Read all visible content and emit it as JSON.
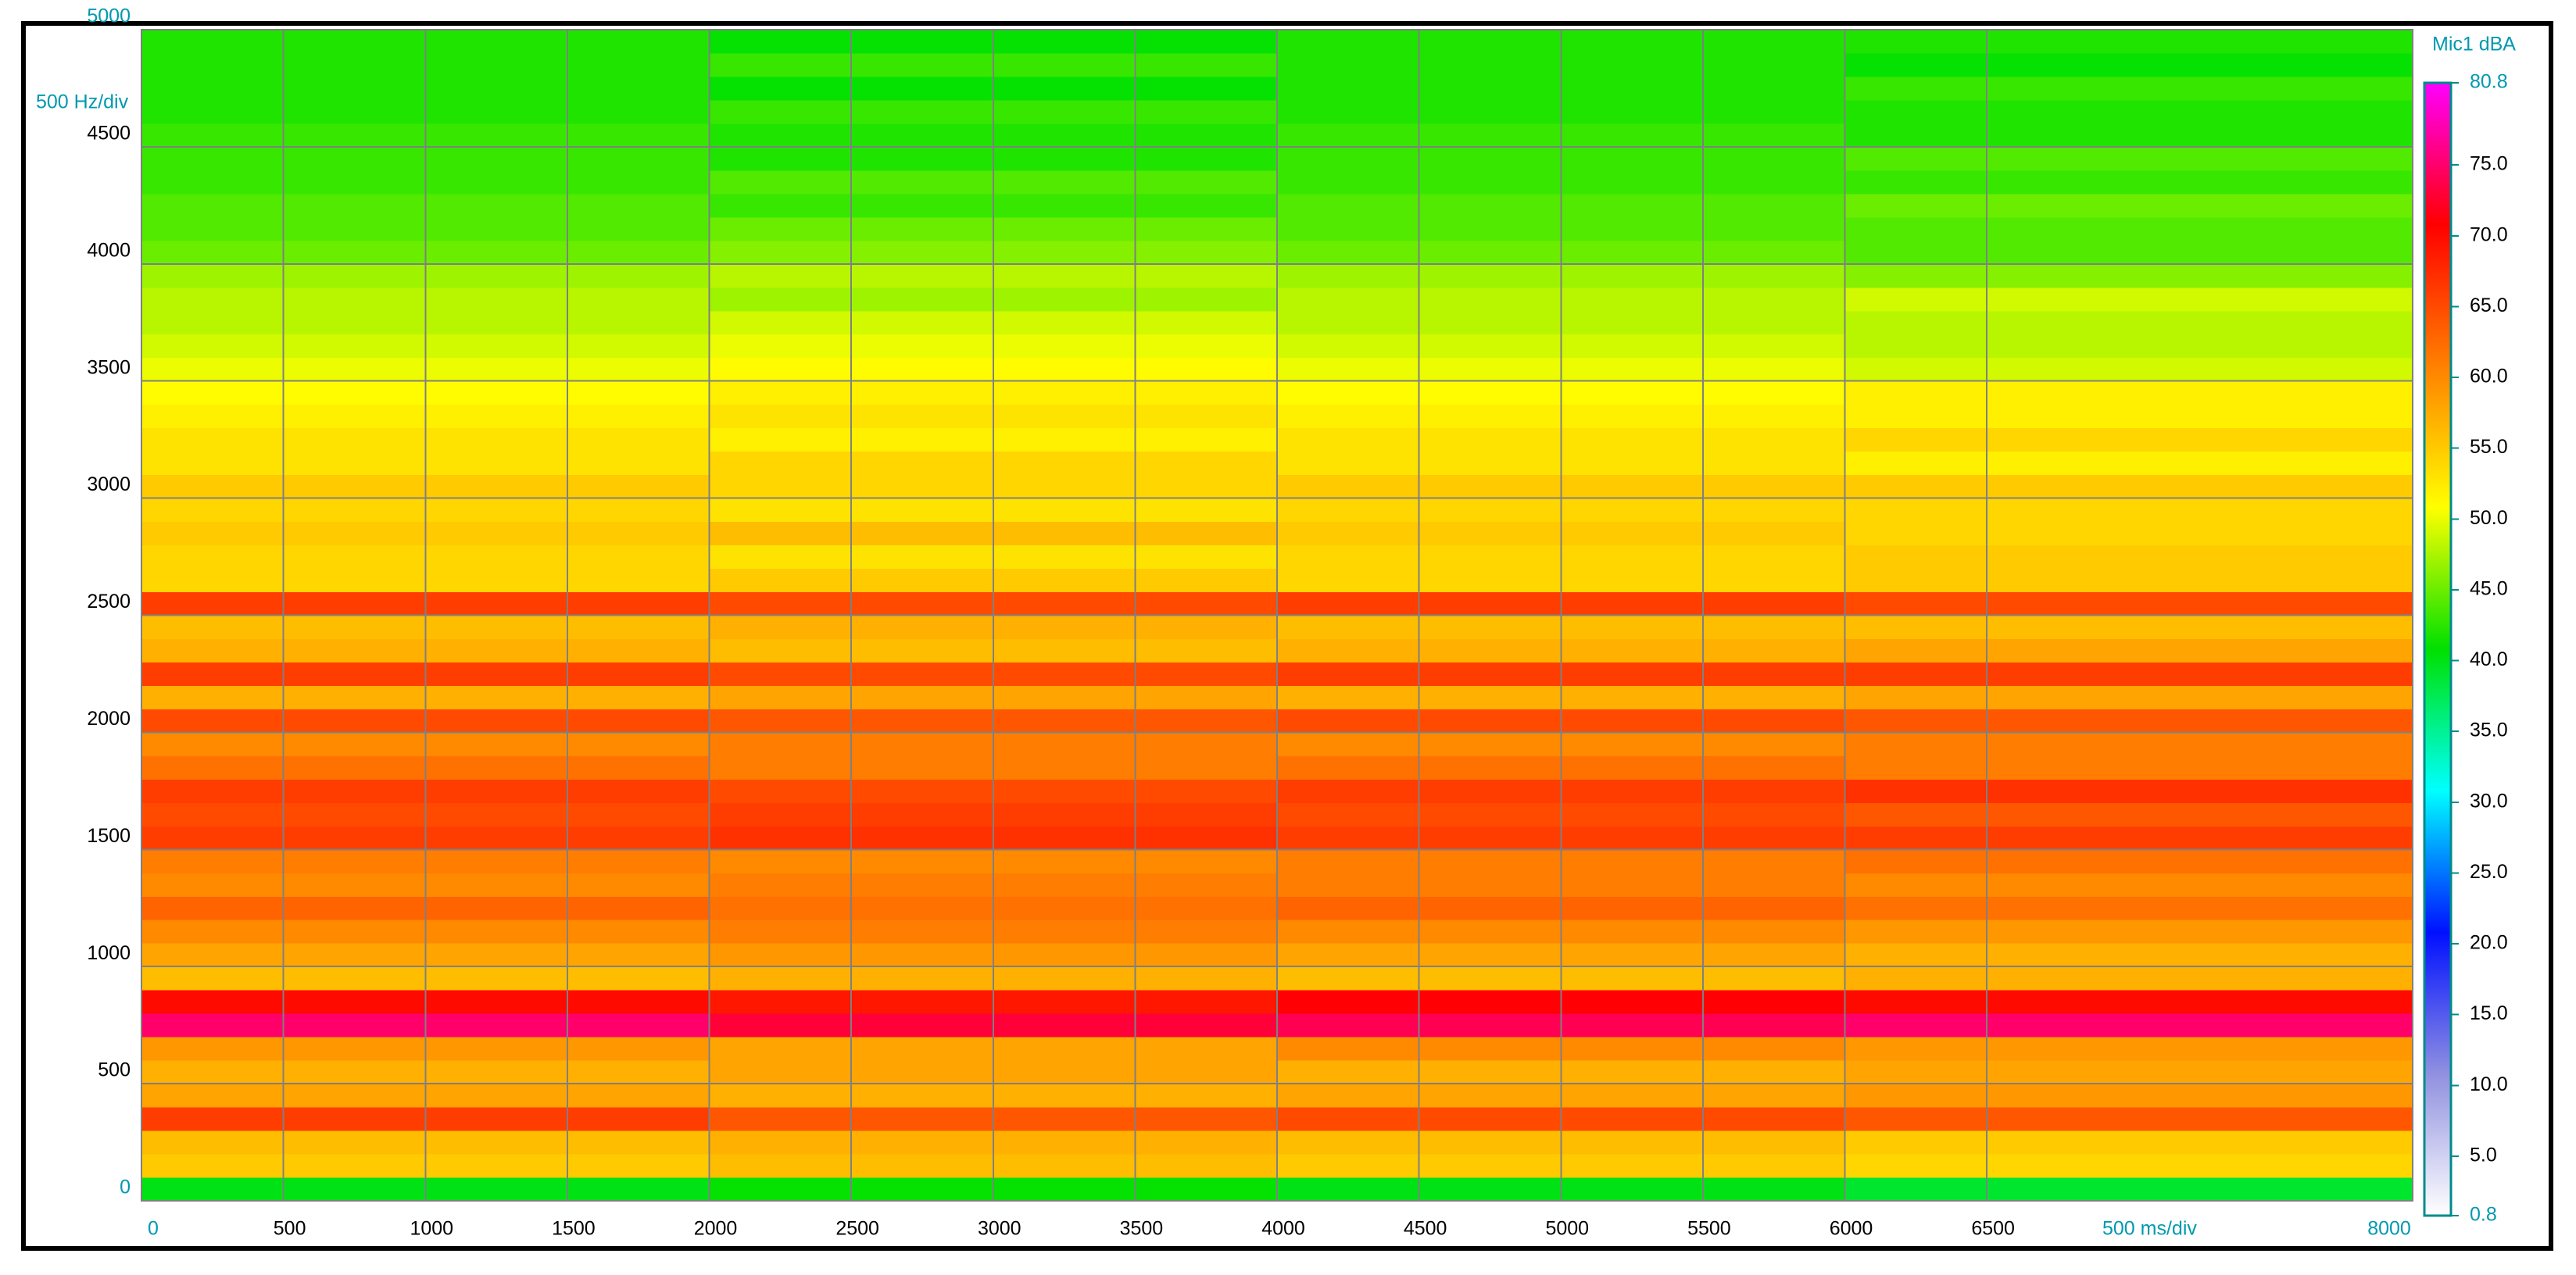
{
  "chart_data": {
    "type": "heatmap",
    "x_label": "500 ms/div",
    "y_label": "500 Hz/div",
    "colorbar_label": "Mic1 dBA",
    "x": [
      0,
      2000,
      4000,
      6000,
      8000
    ],
    "y": [
      0,
      100,
      200,
      300,
      400,
      500,
      600,
      700,
      800,
      900,
      1000,
      1100,
      1200,
      1300,
      1400,
      1500,
      1600,
      1700,
      1800,
      1900,
      2000,
      2100,
      2200,
      2300,
      2400,
      2500,
      2600,
      2700,
      2800,
      2900,
      3000,
      3100,
      3200,
      3300,
      3400,
      3500,
      3600,
      3700,
      3800,
      3900,
      4000,
      4100,
      4200,
      4300,
      4400,
      4500,
      4600,
      4700,
      4800,
      4900,
      5000
    ],
    "z": [
      [
        40,
        41,
        40,
        39
      ],
      [
        55,
        56,
        55,
        54
      ],
      [
        56,
        57,
        56,
        55
      ],
      [
        66,
        64,
        65,
        64
      ],
      [
        58,
        57,
        58,
        59
      ],
      [
        57,
        58,
        57,
        58
      ],
      [
        59,
        58,
        60,
        59
      ],
      [
        75,
        73,
        74,
        75
      ],
      [
        70,
        69,
        71,
        70
      ],
      [
        56,
        57,
        56,
        57
      ],
      [
        58,
        59,
        58,
        57
      ],
      [
        60,
        61,
        60,
        59
      ],
      [
        63,
        62,
        63,
        62
      ],
      [
        60,
        61,
        61,
        60
      ],
      [
        61,
        60,
        61,
        62
      ],
      [
        66,
        67,
        66,
        66
      ],
      [
        65,
        66,
        65,
        64
      ],
      [
        66,
        65,
        66,
        67
      ],
      [
        62,
        61,
        62,
        61
      ],
      [
        60,
        61,
        60,
        61
      ],
      [
        65,
        64,
        65,
        64
      ],
      [
        57,
        58,
        57,
        58
      ],
      [
        66,
        65,
        66,
        66
      ],
      [
        57,
        56,
        57,
        58
      ],
      [
        56,
        57,
        56,
        56
      ],
      [
        66,
        65,
        66,
        65
      ],
      [
        54,
        55,
        54,
        55
      ],
      [
        54,
        53,
        54,
        55
      ],
      [
        55,
        56,
        55,
        54
      ],
      [
        54,
        53,
        54,
        54
      ],
      [
        55,
        54,
        55,
        55
      ],
      [
        53,
        54,
        53,
        52
      ],
      [
        53,
        52,
        53,
        54
      ],
      [
        52,
        53,
        52,
        52
      ],
      [
        51,
        52,
        51,
        52
      ],
      [
        50,
        51,
        50,
        49
      ],
      [
        49,
        50,
        49,
        48
      ],
      [
        48,
        49,
        48,
        48
      ],
      [
        48,
        47,
        48,
        49
      ],
      [
        47,
        48,
        47,
        46
      ],
      [
        45,
        46,
        45,
        44
      ],
      [
        44,
        45,
        44,
        44
      ],
      [
        44,
        43,
        44,
        45
      ],
      [
        43,
        44,
        43,
        43
      ],
      [
        43,
        42,
        43,
        44
      ],
      [
        43,
        42,
        43,
        42
      ],
      [
        42,
        43,
        42,
        42
      ],
      [
        42,
        41,
        42,
        43
      ],
      [
        42,
        43,
        42,
        41
      ],
      [
        42,
        41,
        42,
        42
      ]
    ],
    "xlim": [
      0,
      8000
    ],
    "ylim": [
      0,
      5000
    ],
    "xticks": [
      0,
      500,
      1000,
      1500,
      2000,
      2500,
      3000,
      3500,
      4000,
      4500,
      5000,
      5500,
      6000,
      6500,
      8000
    ],
    "yticks": [
      0,
      500,
      1000,
      1500,
      2000,
      2500,
      3000,
      3500,
      4000,
      4500,
      5000
    ],
    "clim": [
      0.8,
      80.8
    ],
    "cticks": [
      0.8,
      {
        "value": 5,
        "label": "5.0"
      },
      {
        "value": 10,
        "label": "10.0"
      },
      {
        "value": 15,
        "label": "15.0"
      },
      {
        "value": 20,
        "label": "20.0"
      },
      {
        "value": 25,
        "label": "25.0"
      },
      {
        "value": 30,
        "label": "30.0"
      },
      {
        "value": 35,
        "label": "35.0"
      },
      {
        "value": 40,
        "label": "40.0"
      },
      {
        "value": 45,
        "label": "45.0"
      },
      {
        "value": 50,
        "label": "50.0"
      },
      {
        "value": 55,
        "label": "55.0"
      },
      {
        "value": 60,
        "label": "60.0"
      },
      {
        "value": 65,
        "label": "65.0"
      },
      {
        "value": 70,
        "label": "70.0"
      },
      {
        "value": 75,
        "label": "75.0"
      },
      80.8
    ],
    "colors": [
      "#ffffff",
      "#9090e0",
      "#0010ff",
      "#00ffff",
      "#00e000",
      "#ffff00",
      "#ff8000",
      "#ff0000",
      "#ff00ff"
    ],
    "grid": true
  }
}
